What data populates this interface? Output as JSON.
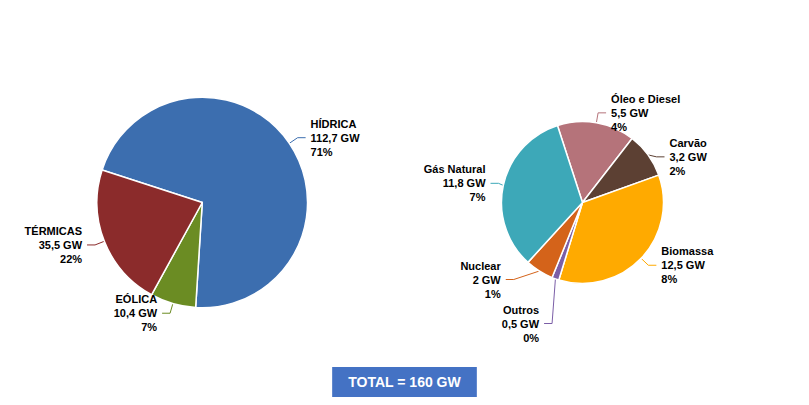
{
  "chart_data": [
    {
      "type": "pie",
      "categories": [
        "HÍDRICA",
        "EÓLICA",
        "TÉRMICAS"
      ],
      "values": [
        71,
        7,
        22
      ],
      "value_labels": [
        "71%",
        "7%",
        "22%"
      ],
      "capacity": [
        {
          "value": 112.7,
          "label": "112,7 GW"
        },
        {
          "value": 10.4,
          "label": "10,4 GW"
        },
        {
          "value": 35.5,
          "label": "35,5 GW"
        }
      ],
      "colors": [
        "#3C6EAF",
        "#6B8C23",
        "#8B2B2B"
      ],
      "annotations": [
        {
          "text": "TOTAL = 160 GW",
          "color": "#4472C4",
          "text_color": "#FFFFFF"
        }
      ]
    },
    {
      "type": "pie",
      "categories": [
        "Óleo e Diesel",
        "Carvão",
        "Biomassa",
        "Outros",
        "Nuclear",
        "Gás Natural"
      ],
      "values": [
        5.5,
        3.2,
        12.5,
        0.5,
        2.0,
        11.8
      ],
      "value_labels": [
        "5,5 GW",
        "3,2 GW",
        "12,5 GW",
        "0,5 GW",
        "2 GW",
        "11,8 GW"
      ],
      "percent": [
        {
          "value": 4,
          "label": "4%"
        },
        {
          "value": 2,
          "label": "2%"
        },
        {
          "value": 8,
          "label": "8%"
        },
        {
          "value": 0,
          "label": "0%"
        },
        {
          "value": 1,
          "label": "1%"
        },
        {
          "value": 7,
          "label": "7%"
        }
      ],
      "colors": [
        "#B5737A",
        "#5C4033",
        "#FFAA00",
        "#7B5EA7",
        "#D4631A",
        "#3DA8B8"
      ]
    }
  ]
}
